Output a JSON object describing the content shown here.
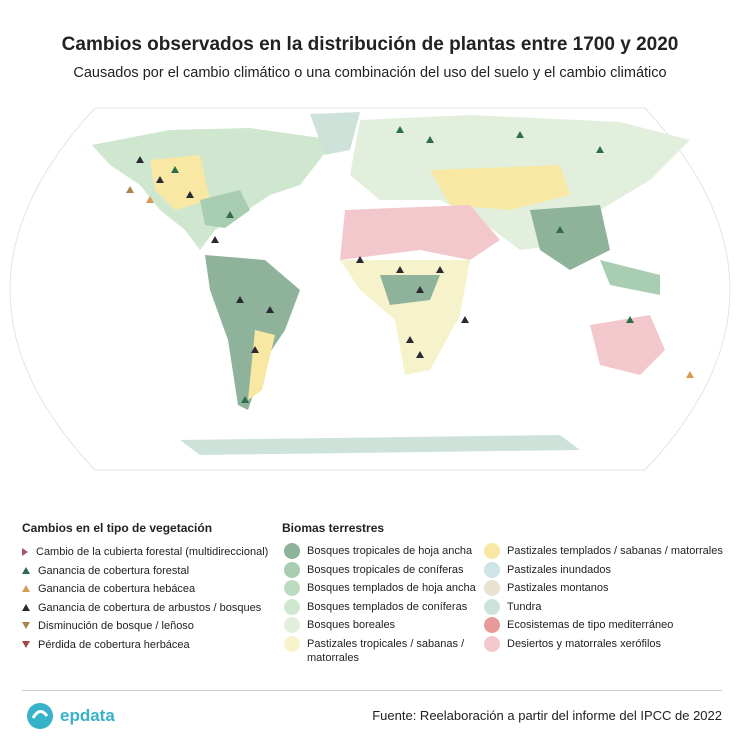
{
  "header": {
    "title": "Cambios observados en la distribución de plantas entre 1700 y 2020",
    "subtitle": "Causados por el cambio climático o una combinación del uso del suelo y el cambio climático"
  },
  "legend_changes": {
    "title": "Cambios en el tipo de vegetación",
    "items": [
      {
        "label": "Cambio de la cubierta forestal (multidireccional)",
        "color": "#a0527a",
        "marker": "right"
      },
      {
        "label": "Ganancia de cobertura forestal",
        "color": "#2f6b4f",
        "marker": "up"
      },
      {
        "label": "Ganancia de cobertura hebácea",
        "color": "#d99a55",
        "marker": "up"
      },
      {
        "label": "Ganancia de cobertura de arbustos / bosques",
        "color": "#2a2a33",
        "marker": "up"
      },
      {
        "label": "Disminución de bosque / leñoso",
        "color": "#a8864a",
        "marker": "down"
      },
      {
        "label": "Pérdida de cobertura herbácea",
        "color": "#a04848",
        "marker": "down"
      }
    ]
  },
  "legend_biomes": {
    "title": "Biomas terrestres",
    "items": [
      {
        "label": "Bosques tropicales de hoja ancha",
        "color": "#8fb39a"
      },
      {
        "label": "Bosques tropicales de coníferas",
        "color": "#a9cdb0"
      },
      {
        "label": "Bosques templados de hoja ancha",
        "color": "#bcdcc2"
      },
      {
        "label": "Bosques templados de coníferas",
        "color": "#cfe6cf"
      },
      {
        "label": "Bosques boreales",
        "color": "#e1efdc"
      },
      {
        "label": "Pastizales tropicales / sabanas / matorrales",
        "color": "#f6f3cc"
      },
      {
        "label": "Pastizales templados / sabanas / matorrales",
        "color": "#f9e8a4"
      },
      {
        "label": "Pastizales inundados",
        "color": "#cfe4e6"
      },
      {
        "label": "Pastizales montanos",
        "color": "#e8e2d0"
      },
      {
        "label": "Tundra",
        "color": "#cde3da"
      },
      {
        "label": "Ecosistemas de tipo mediterráneo",
        "color": "#e89a9a"
      },
      {
        "label": "Desiertos y matorrales xerófilos",
        "color": "#f3c8cc"
      }
    ]
  },
  "footer": {
    "logo": "epdata",
    "source": "Fuente: Reelaboración a partir del informe del IPCC de 2022"
  }
}
